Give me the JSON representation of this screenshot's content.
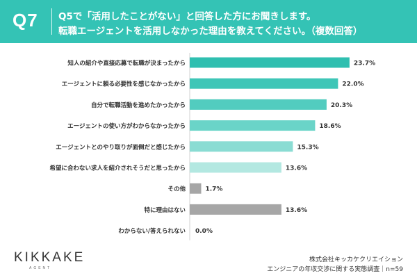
{
  "header": {
    "qnum": "Q7",
    "line1": "Q5で「活用したことがない」と回答した方にお聞きします。",
    "line2": "転職エージェントを活用しなかった理由を教えてください。（複数回答）",
    "bg_color": "#34c3b5"
  },
  "chart_data": {
    "type": "bar",
    "orientation": "horizontal",
    "categories": [
      "知人の紹介や直接応募で転職が決まったから",
      "エージェントに頼る必要性を感じなかったから",
      "自分で転職活動を進めたかったから",
      "エージェントの使い方がわからなかったから",
      "エージェントとのやり取りが面倒だと感じたから",
      "希望に合わない求人を紹介されそうだと思ったから",
      "その他",
      "特に理由はない",
      "わからない/答えられない"
    ],
    "values": [
      23.7,
      22.0,
      20.3,
      18.6,
      15.3,
      13.6,
      1.7,
      13.6,
      0.0
    ],
    "value_labels": [
      "23.7%",
      "22.0%",
      "20.3%",
      "18.6%",
      "15.3%",
      "13.6%",
      "1.7%",
      "13.6%",
      "0.0%"
    ],
    "colors": [
      "#2fbfb0",
      "#3ec6b7",
      "#52ccbf",
      "#6ad4c8",
      "#8adcd3",
      "#b3e8e1",
      "#a6a6a6",
      "#a6a6a6",
      "#a6a6a6"
    ]
  },
  "footer": {
    "logo": "KIKKAKE",
    "logo_sub": "AGENT",
    "company": "株式会社キッカケクリエイション",
    "survey": "エンジニアの年収交渉に関する実態調査｜n=59"
  }
}
